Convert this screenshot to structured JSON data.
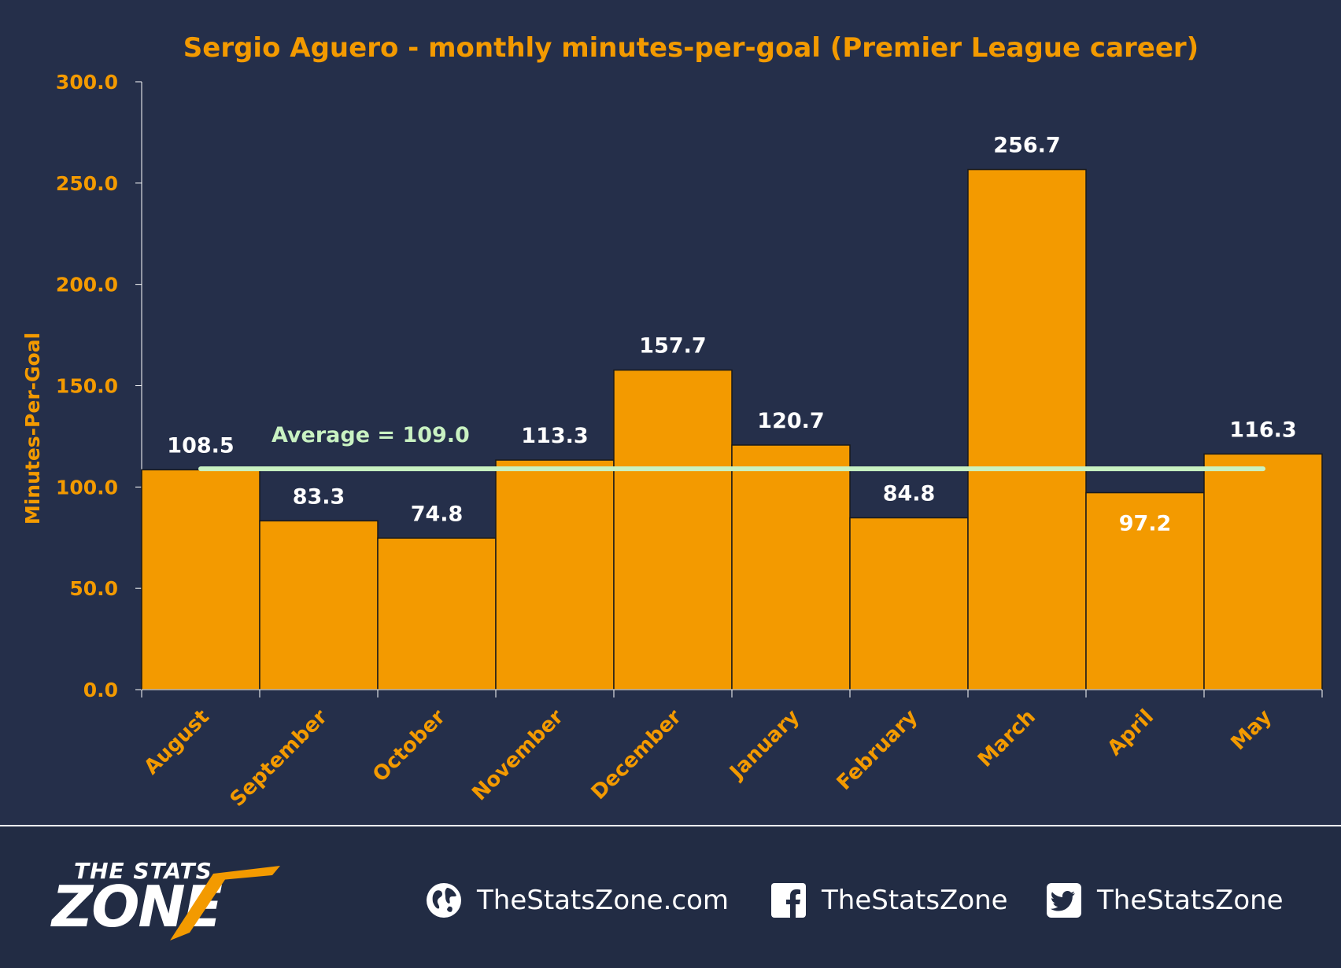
{
  "chart_data": {
    "type": "bar",
    "title": "Sergio Aguero - monthly minutes-per-goal (Premier League career)",
    "xlabel": "",
    "ylabel": "Minutes-Per-Goal",
    "ylim": [
      0,
      300
    ],
    "yticks": [
      "0.0",
      "50.0",
      "100.0",
      "150.0",
      "200.0",
      "250.0",
      "300.0"
    ],
    "categories": [
      "August",
      "September",
      "October",
      "November",
      "December",
      "January",
      "February",
      "March",
      "April",
      "May"
    ],
    "values": [
      108.5,
      83.3,
      74.8,
      113.3,
      157.7,
      120.7,
      84.8,
      256.7,
      97.2,
      116.3
    ],
    "value_labels": [
      "108.5",
      "83.3",
      "74.8",
      "113.3",
      "157.7",
      "120.7",
      "84.8",
      "256.7",
      "97.2",
      "116.3"
    ],
    "average": {
      "value": 109.0,
      "label": "Average = 109.0"
    },
    "grid": false,
    "legend": "none",
    "colors": {
      "background": "#252f4a",
      "bar": "#f39a00",
      "bar_edge": "#1a1a1a",
      "accent_text": "#f39a00",
      "value_text": "#ffffff",
      "average_line": "#c9f2c2"
    }
  },
  "footer": {
    "logo_top": "THE STATS",
    "logo_main": "ZONE",
    "links": [
      {
        "icon": "globe-icon",
        "label": "TheStatsZone.com"
      },
      {
        "icon": "facebook-icon",
        "label": "TheStatsZone"
      },
      {
        "icon": "twitter-icon",
        "label": "TheStatsZone"
      }
    ]
  }
}
